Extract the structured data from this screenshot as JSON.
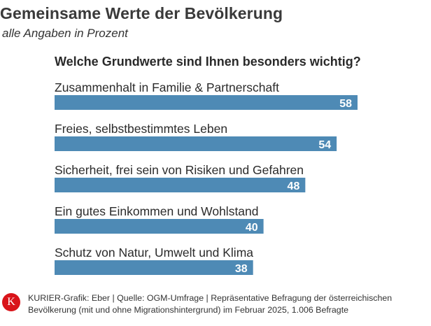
{
  "header": {
    "title": "Gemeinsame Werte der Bevölkerung",
    "subtitle": "alle Angaben in Prozent",
    "question": "Welche Grundwerte sind Ihnen besonders wichtig?"
  },
  "chart_data": {
    "type": "bar",
    "orientation": "horizontal",
    "title": "Gemeinsame Werte der Bevölkerung",
    "subtitle": "alle Angaben in Prozent",
    "xlabel": "",
    "ylabel": "",
    "xlim": [
      0,
      58
    ],
    "grid": false,
    "legend": "none",
    "categories": [
      "Zusammenhalt in Familie & Partnerschaft",
      "Freies, selbstbestimmtes Leben",
      "Sicherheit, frei sein von Risiken und Gefahren",
      "Ein gutes Einkommen und Wohlstand",
      "Schutz von Natur, Umwelt und Klima"
    ],
    "values": [
      58,
      54,
      48,
      40,
      38
    ],
    "data_labels_shown": true
  },
  "colors": {
    "bar": "#4e8ab5",
    "bar_label": "#ffffff",
    "logo_bg": "#d9141a"
  },
  "footer": {
    "logo_letter": "K",
    "source_line1": "KURIER-Grafik: Eber | Quelle: OGM-Umfrage | Repräsentative Befragung der österreichischen",
    "source_line2": "Bevölkerung (mit und ohne Migrationshintergrund) im Februar 2025, 1.006 Befragte"
  }
}
